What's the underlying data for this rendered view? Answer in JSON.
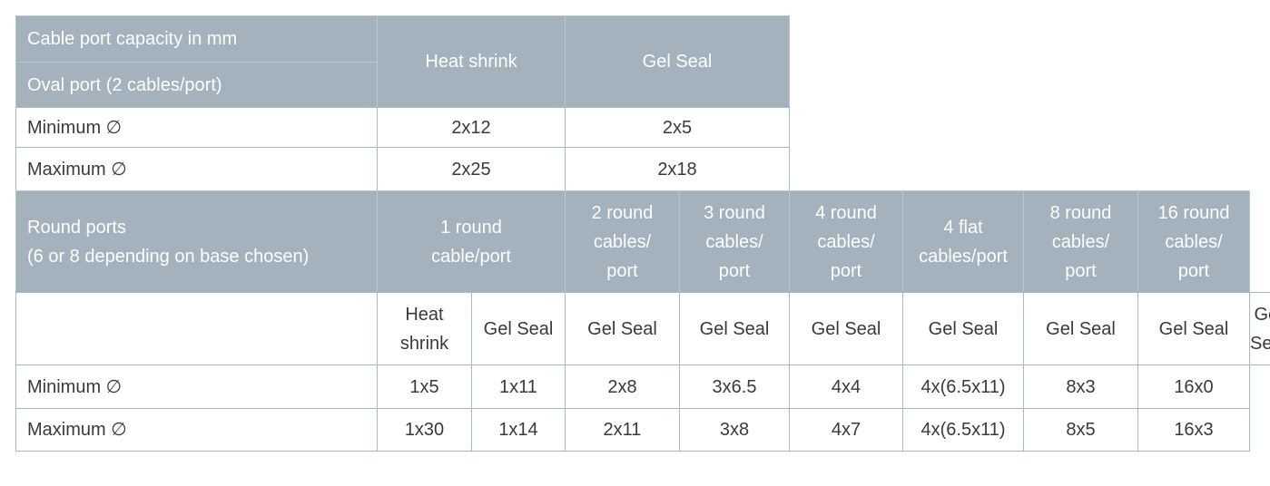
{
  "oval_table": {
    "title_lines": [
      "Cable port capacity in mm",
      "Oval port (2 cables/port)"
    ],
    "columns": [
      "Heat shrink",
      "Gel Seal"
    ],
    "rows": [
      [
        "Minimum ∅",
        "2x12",
        "2x5"
      ],
      [
        "Maximum ∅",
        "2x25",
        "2x18"
      ]
    ]
  },
  "round_table": {
    "title": "Round ports\n(6 or 8 depending on base chosen)",
    "columns": [
      "1 round\ncable/port",
      "2 round\ncables/\nport",
      "3 round\ncables/\nport",
      "4 round\ncables/\nport",
      "4 flat\ncables/port",
      "8 round\ncables/\nport",
      "16 round\ncables/\nport"
    ],
    "subheader": [
      "Heat\nshrink",
      "Gel Seal",
      "Gel Seal",
      "Gel Seal",
      "Gel Seal",
      "Gel Seal",
      "Gel Seal",
      "Gel Seal",
      "Gel Seal"
    ],
    "rows": [
      [
        "Minimum ∅",
        "1x5",
        "1x11",
        "2x8",
        "3x6.5",
        "4x4",
        "4x(6.5x11)",
        "8x3",
        "16x0"
      ],
      [
        "Maximum ∅",
        "1x30",
        "1x14",
        "2x11",
        "3x8",
        "4x7",
        "4x(6.5x11)",
        "8x5",
        "16x3"
      ]
    ]
  }
}
